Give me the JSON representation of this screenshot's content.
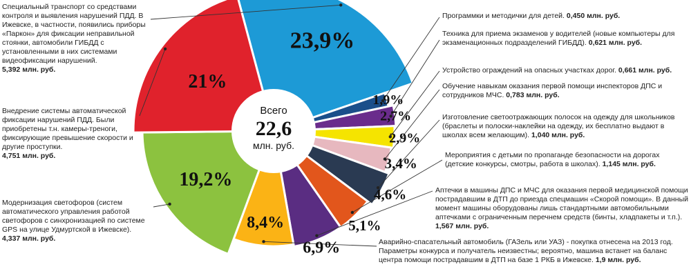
{
  "chart_data": {
    "type": "pie",
    "style": "donut",
    "center": {
      "top": "Всего",
      "value": "22,6",
      "unit": "млн. руб."
    },
    "slices": [
      {
        "label": "23,9%",
        "value": 23.9,
        "color": "#1d9ad6",
        "text": "Специальный транспорт со средствами контроля и выявления нарушений ПДД. В Ижевске, в частности, появились приборы «Паркон» для фиксации неправильной стоянки, автомобили ГИБДД с установленными в них системами видеофиксации нарушений.",
        "amount": "5,392 млн. руб."
      },
      {
        "label": "1,9%",
        "value": 1.9,
        "color": "#1b4f8a",
        "text": "Программки и методички для детей.",
        "amount": "0,450 млн. руб."
      },
      {
        "label": "2,7%",
        "value": 2.7,
        "color": "#6a2c8c",
        "text": "Техника для приема экзаменов у водителей (новые компьютеры для экзаменационных подразделений ГИБДД).",
        "amount": "0,621 млн. руб."
      },
      {
        "label": "2,9%",
        "value": 2.9,
        "color": "#f5e400",
        "text": "Устройство ограждений на опасных участках дорог.",
        "amount": "0,661 млн. руб."
      },
      {
        "label": "3,4%",
        "value": 3.4,
        "color": "#e7b8bf",
        "text": "Обучение навыкам оказания первой помощи инспекторов ДПС и сотрудников МЧС.",
        "amount": "0,783 млн. руб."
      },
      {
        "label": "4,6%",
        "value": 4.6,
        "color": "#2a3a52",
        "text": "Изготовление светоотражающих полосок на одежду для школьников (браслеты и полоски-наклейки на одежду, их бесплатно выдают в школах всем желающим).",
        "amount": "1,040 млн. руб."
      },
      {
        "label": "5,1%",
        "value": 5.1,
        "color": "#e2561c",
        "text": "Мероприятия с детьми по пропаганде безопасности на дорогах (детские конкурсы, смотры, работа в школах).",
        "amount": "1,145 млн. руб."
      },
      {
        "label": "6,9%",
        "value": 6.9,
        "color": "#5a2d82",
        "text": "Аптечки в машины ДПС и МЧС для оказания первой медицинской помощи пострадавшим в ДТП до приезда спецмашин «Скорой помощи». В данный момент машины оборудованы лишь стандартными автомобильными аптечками с ограниченным перечнем средств (бинты, хладпакеты и т.п.).",
        "amount": "1,567 млн. руб."
      },
      {
        "label": "8,4%",
        "value": 8.4,
        "color": "#fbb315",
        "text": "Аварийно-спасательный автомобиль (ГАЗель или УАЗ) - покупка отнесена на 2013 год. Параметры конкурса и получатель неизвестны; вероятно, машина встанет на баланс центра помощи пострадавшим в ДТП на базе 1 РКБ в Ижевске.",
        "amount": "1,9 млн. руб."
      },
      {
        "label": "19,2%",
        "value": 19.2,
        "color": "#8cc23f",
        "text": "Модернизация светофоров (систем автоматического управления работой светофоров с синхронизацией по системе GPS на улице Удмуртской в Ижевске).",
        "amount": "4,337 млн. руб."
      },
      {
        "label": "21%",
        "value": 21,
        "color": "#e0222c",
        "text": "Внедрение системы автоматической фиксации нарушений ПДД. Были приобретены т.н. камеры-треноги, фиксирующие превышение скорости и другие проступки.",
        "amount": "4,751 млн. руб."
      }
    ]
  }
}
